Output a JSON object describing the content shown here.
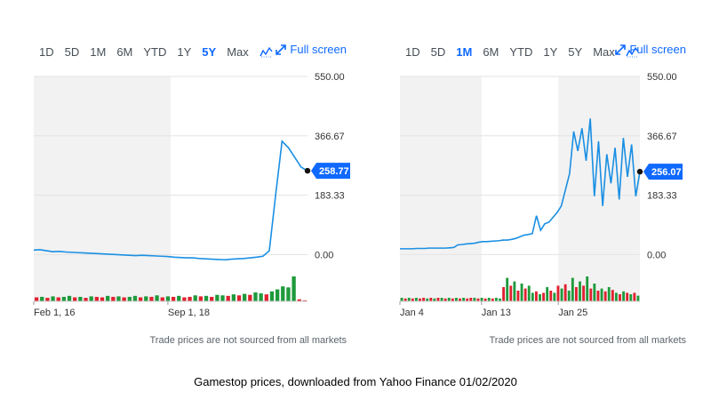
{
  "caption": "Gamestop prices, downloaded from Yahoo Finance 01/02/2020",
  "colors": {
    "line": "#1a8fe3",
    "up": "#1e9a3c",
    "down": "#e0212f",
    "accent": "#0f69ff",
    "shade": "#f2f2f2"
  },
  "icons": {
    "chart_type": "line-chart-icon",
    "fullscreen": "expand-arrows-icon"
  },
  "charts": [
    {
      "id": "left",
      "toolbar": {
        "ranges": [
          "1D",
          "5D",
          "1M",
          "6M",
          "YTD",
          "1Y",
          "5Y",
          "Max"
        ],
        "active": "5Y",
        "fullscreen_label": "Full screen"
      },
      "disclaimer": "Trade prices are not sourced from all markets",
      "chart_data": {
        "type": "line",
        "title": "",
        "y_ticks": [
          "550.00",
          "366.67",
          "183.33",
          "0.00"
        ],
        "x_tick_labels": [
          "Feb 1, 16",
          "Sep 1, 18"
        ],
        "ylim": [
          -40,
          550
        ],
        "grid": true,
        "shaded_region": "first half of the range",
        "current_price": "258.77",
        "series": [
          {
            "values": [
              14,
              15,
              12,
              9,
              10,
              8,
              7,
              6,
              5,
              4,
              3,
              2,
              1,
              0,
              -1,
              -2,
              -3,
              -2,
              -3,
              -4,
              -5,
              -6,
              -8,
              -9,
              -10,
              -10,
              -12,
              -13,
              -14,
              -15,
              -16,
              -14,
              -13,
              -12,
              -10,
              -8,
              -5,
              12,
              185,
              350,
              330,
              300,
              270,
              258.77
            ]
          }
        ],
        "volume": {
          "up": [
            0,
            1,
            0,
            1,
            0,
            1,
            1,
            0,
            1,
            0,
            1,
            0,
            0,
            1,
            0,
            1,
            0,
            1,
            1,
            0,
            1,
            0,
            1,
            0,
            1,
            0,
            1,
            0,
            0,
            1,
            0,
            1,
            0,
            1,
            1,
            0,
            1,
            0,
            1,
            0,
            1,
            1,
            0,
            1,
            1,
            1,
            1,
            1,
            0,
            0
          ],
          "values": [
            8,
            9,
            7,
            10,
            8,
            9,
            11,
            8,
            9,
            7,
            10,
            9,
            8,
            11,
            9,
            10,
            8,
            9,
            11,
            8,
            10,
            9,
            12,
            8,
            10,
            9,
            11,
            8,
            9,
            12,
            10,
            11,
            9,
            13,
            12,
            11,
            14,
            12,
            15,
            13,
            18,
            16,
            14,
            20,
            24,
            30,
            28,
            50,
            4,
            2
          ]
        }
      }
    },
    {
      "id": "right",
      "toolbar": {
        "ranges": [
          "1D",
          "5D",
          "1M",
          "6M",
          "YTD",
          "1Y",
          "5Y",
          "Max"
        ],
        "active": "1M",
        "fullscreen_label": "Full screen"
      },
      "disclaimer": "Trade prices are not sourced from all markets",
      "chart_data": {
        "type": "line",
        "title": "",
        "y_ticks": [
          "550.00",
          "366.67",
          "183.33",
          "0.00"
        ],
        "x_tick_labels": [
          "Jan 4",
          "Jan 13",
          "Jan 25"
        ],
        "ylim": [
          -40,
          550
        ],
        "grid": true,
        "shaded_region": "first third and last third of the range",
        "current_price": "256.07",
        "series": [
          {
            "values": [
              18,
              18,
              18,
              18,
              19,
              19,
              19,
              20,
              20,
              20,
              20,
              20,
              21,
              22,
              30,
              31,
              33,
              34,
              35,
              38,
              40,
              40,
              41,
              42,
              43,
              45,
              45,
              47,
              50,
              55,
              60,
              62,
              65,
              120,
              75,
              95,
              100,
              115,
              130,
              150,
              200,
              250,
              380,
              320,
              390,
              290,
              420,
              180,
              350,
              150,
              310,
              220,
              330,
              170,
              360,
              240,
              340,
              180,
              256.07
            ]
          }
        ],
        "volume": {
          "up": [
            1,
            0,
            1,
            0,
            1,
            0,
            0,
            1,
            0,
            1,
            0,
            1,
            0,
            1,
            0,
            1,
            0,
            1,
            0,
            0,
            1,
            0,
            1,
            0,
            1,
            0,
            1,
            1,
            0,
            1,
            0,
            1,
            0,
            1,
            0,
            1,
            1,
            0,
            1,
            0,
            1,
            0,
            1,
            0,
            1,
            0,
            1,
            1,
            0,
            1,
            0,
            1,
            0,
            1,
            0,
            1,
            0,
            1,
            0,
            1,
            0,
            1,
            0,
            1,
            0,
            1
          ],
          "values": [
            5,
            4,
            5,
            4,
            5,
            4,
            5,
            4,
            5,
            4,
            5,
            5,
            4,
            5,
            4,
            5,
            4,
            5,
            4,
            5,
            5,
            4,
            5,
            4,
            5,
            4,
            5,
            4,
            20,
            33,
            22,
            28,
            15,
            25,
            18,
            22,
            12,
            14,
            10,
            12,
            20,
            15,
            12,
            22,
            18,
            24,
            15,
            33,
            20,
            28,
            22,
            35,
            18,
            25,
            15,
            18,
            14,
            20,
            16,
            12,
            10,
            14,
            12,
            10,
            12,
            8
          ]
        }
      }
    }
  ]
}
